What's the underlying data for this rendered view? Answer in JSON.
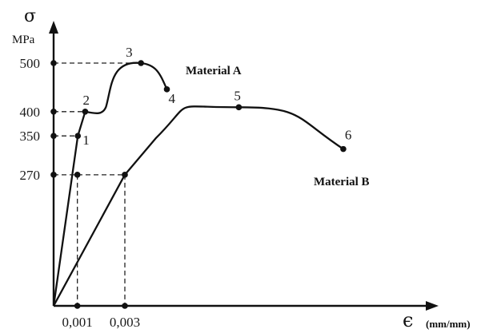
{
  "chart_data": {
    "type": "line",
    "y_axis": {
      "symbol": "σ",
      "unit": "MPa",
      "ticks": [
        500,
        400,
        350,
        270
      ]
    },
    "x_axis": {
      "symbol": "ϵ",
      "unit": "(mm/mm)",
      "ticks": [
        "0,001",
        "0,003"
      ]
    },
    "series": [
      {
        "name": "Material A",
        "color": "#111111",
        "points": [
          {
            "label": "1",
            "x": 0.00102,
            "y": 350
          },
          {
            "label": "2",
            "x": 0.00133,
            "y": 400
          },
          {
            "label": "3",
            "x": 0.00368,
            "y": 500
          },
          {
            "label": "4",
            "x": 0.00477,
            "y": 446
          }
        ]
      },
      {
        "name": "Material B",
        "color": "#111111",
        "points": [
          {
            "label": "5",
            "x": 0.0078,
            "y": 409
          },
          {
            "label": "6",
            "x": 0.0122,
            "y": 323
          }
        ]
      }
    ]
  }
}
